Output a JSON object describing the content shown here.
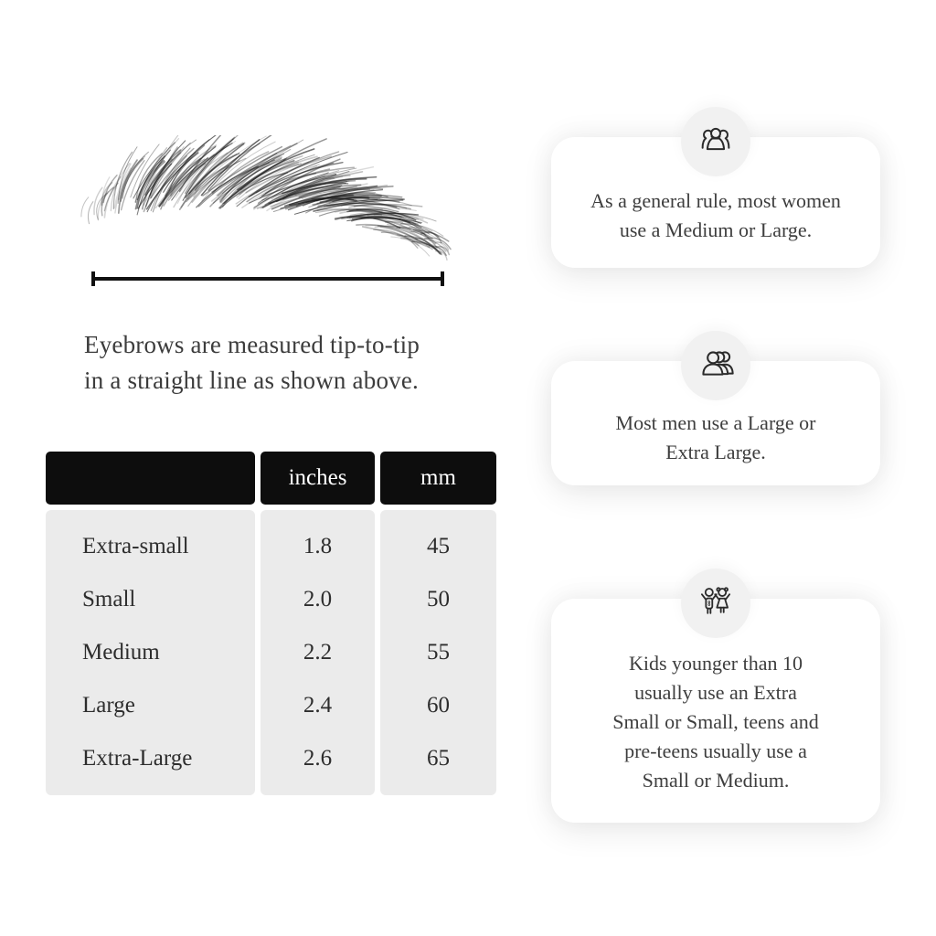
{
  "diagram": {
    "caption": [
      "Eyebrows are measured tip-to-tip",
      "in a straight line as shown above."
    ]
  },
  "table": {
    "header": {
      "size": "",
      "inches": "inches",
      "mm": "mm"
    },
    "rows": [
      {
        "label": "Extra-small",
        "inches": "1.8",
        "mm": "45"
      },
      {
        "label": "Small",
        "inches": "2.0",
        "mm": "50"
      },
      {
        "label": "Medium",
        "inches": "2.2",
        "mm": "55"
      },
      {
        "label": "Large",
        "inches": "2.4",
        "mm": "60"
      },
      {
        "label": "Extra-Large",
        "inches": "2.6",
        "mm": "65"
      }
    ]
  },
  "cards": [
    {
      "icon": "women-group-icon",
      "lines": [
        "As a general rule, most women",
        "use a Medium or Large."
      ]
    },
    {
      "icon": "men-group-icon",
      "lines": [
        "Most men use a Large or",
        "Extra Large."
      ]
    },
    {
      "icon": "kids-icon",
      "lines": [
        "Kids younger than 10",
        "usually use an Extra",
        "Small or Small, teens and",
        "pre-teens usually use a",
        "Small or Medium."
      ]
    }
  ],
  "colors": {
    "background": "#ffffff",
    "table_header_bg": "#0d0d0d",
    "table_header_text": "#ffffff",
    "table_body_bg": "#ebebeb",
    "text": "#3a3a3a",
    "card_bg": "#ffffff",
    "icon_circle_bg": "#f1f1f1",
    "icon_stroke": "#2b2b2b",
    "measure_line": "#101010"
  }
}
